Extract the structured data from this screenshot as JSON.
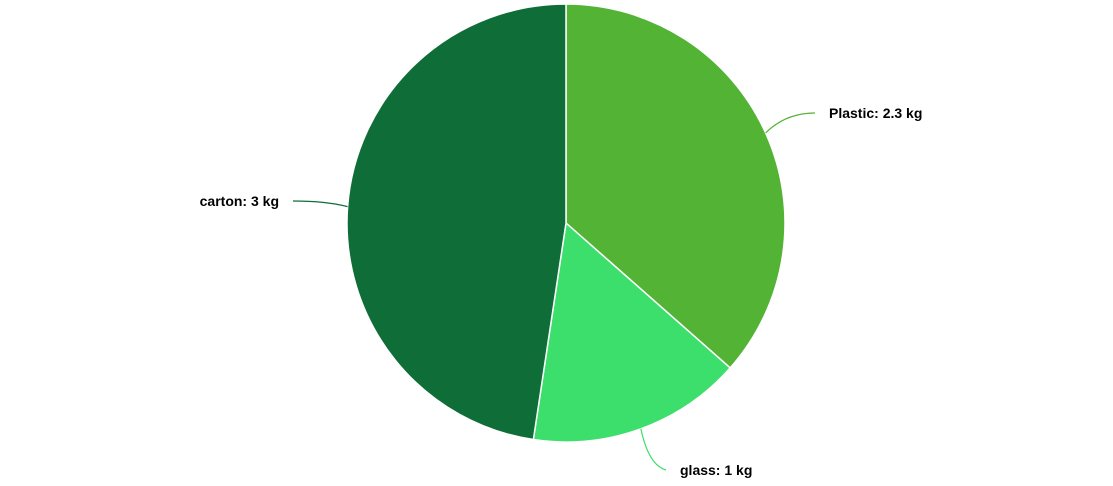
{
  "chart_data": {
    "type": "pie",
    "title": "",
    "unit": "kg",
    "slices": [
      {
        "label": "Plastic",
        "value": 2.3,
        "value_text": "2.3 kg",
        "color": "#52b334"
      },
      {
        "label": "glass",
        "value": 1,
        "value_text": "1 kg",
        "color": "#3cdf6b"
      },
      {
        "label": "carton",
        "value": 3,
        "value_text": "3 kg",
        "color": "#0f6d38"
      }
    ],
    "start_angle": "12 o'clock",
    "direction": "clockwise",
    "legend": "none",
    "data_labels": "outside with leader lines"
  }
}
